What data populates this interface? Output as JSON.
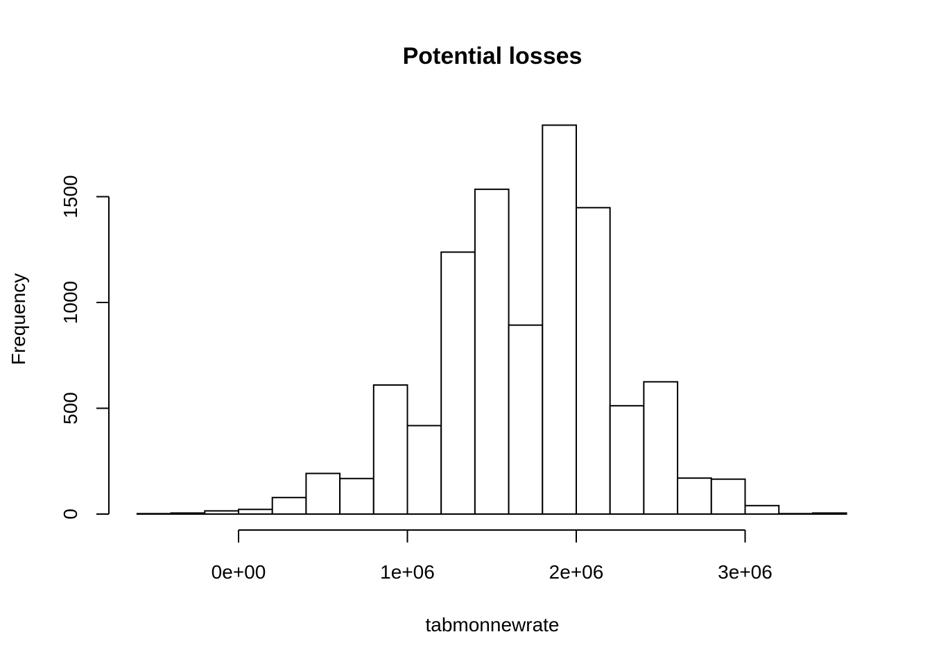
{
  "chart_data": {
    "type": "bar",
    "title": "Potential losses",
    "xlabel": "tabmonnewrate",
    "ylabel": "Frequency",
    "bin_width": 200000,
    "bin_start": -600000,
    "xlim": [
      -600000,
      3600000
    ],
    "ylim": [
      0,
      1850
    ],
    "x_ticks": [
      {
        "value": 0,
        "label": "0e+00"
      },
      {
        "value": 1000000,
        "label": "1e+06"
      },
      {
        "value": 2000000,
        "label": "2e+06"
      },
      {
        "value": 3000000,
        "label": "3e+06"
      }
    ],
    "y_ticks": [
      {
        "value": 0,
        "label": "0"
      },
      {
        "value": 500,
        "label": "500"
      },
      {
        "value": 1000,
        "label": "1000"
      },
      {
        "value": 1500,
        "label": "1500"
      }
    ],
    "counts": [
      2,
      5,
      15,
      22,
      78,
      192,
      168,
      610,
      418,
      1238,
      1535,
      893,
      1838,
      1448,
      512,
      625,
      170,
      165,
      40,
      2,
      5
    ],
    "grid": false,
    "colors": {
      "bar_fill": "#ffffff",
      "bar_stroke": "#000000"
    }
  }
}
